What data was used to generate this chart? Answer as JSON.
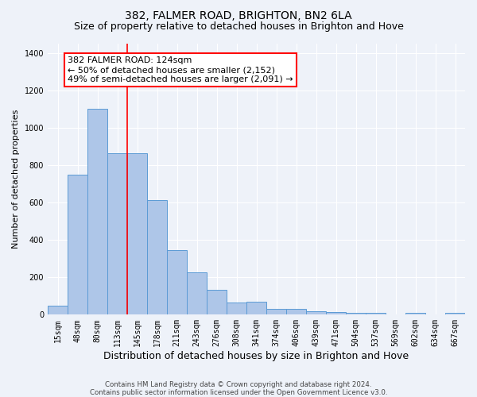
{
  "title": "382, FALMER ROAD, BRIGHTON, BN2 6LA",
  "subtitle": "Size of property relative to detached houses in Brighton and Hove",
  "xlabel": "Distribution of detached houses by size in Brighton and Hove",
  "ylabel": "Number of detached properties",
  "categories": [
    "15sqm",
    "48sqm",
    "80sqm",
    "113sqm",
    "145sqm",
    "178sqm",
    "211sqm",
    "243sqm",
    "276sqm",
    "308sqm",
    "341sqm",
    "374sqm",
    "406sqm",
    "439sqm",
    "471sqm",
    "504sqm",
    "537sqm",
    "569sqm",
    "602sqm",
    "634sqm",
    "667sqm"
  ],
  "bar_values": [
    50,
    750,
    1100,
    865,
    865,
    615,
    345,
    225,
    135,
    65,
    70,
    30,
    30,
    20,
    15,
    10,
    10,
    2,
    10,
    2,
    10
  ],
  "bar_color": "#aec6e8",
  "bar_edge_color": "#5b9bd5",
  "vline_x": 3.5,
  "vline_color": "red",
  "annotation_text": "382 FALMER ROAD: 124sqm\n← 50% of detached houses are smaller (2,152)\n49% of semi-detached houses are larger (2,091) →",
  "annotation_box_color": "white",
  "annotation_box_edge_color": "red",
  "ylim": [
    0,
    1450
  ],
  "yticks": [
    0,
    200,
    400,
    600,
    800,
    1000,
    1200,
    1400
  ],
  "footer1": "Contains HM Land Registry data © Crown copyright and database right 2024.",
  "footer2": "Contains public sector information licensed under the Open Government Licence v3.0.",
  "bg_color": "#eef2f9",
  "plot_bg_color": "#eef2f9",
  "title_fontsize": 10,
  "subtitle_fontsize": 9,
  "annotation_fontsize": 8,
  "ylabel_fontsize": 8,
  "xlabel_fontsize": 9,
  "tick_fontsize": 7
}
